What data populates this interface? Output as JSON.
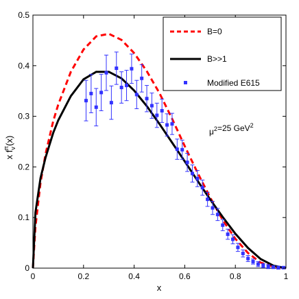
{
  "chart_data": {
    "type": "line",
    "title": "",
    "xlabel": "x",
    "ylabel": "x f_v^π(x)",
    "xlim": [
      0,
      1
    ],
    "ylim": [
      0,
      0.5
    ],
    "xticks": [
      "0",
      "0.2",
      "0.4",
      "0.6",
      "0.8",
      "1"
    ],
    "yticks": [
      "0",
      "0.1",
      "0.2",
      "0.3",
      "0.4",
      "0.5"
    ],
    "annotation": "μ²=25 GeV²",
    "legend_position": "top-right",
    "grid": false,
    "series": [
      {
        "name": "B=0",
        "style": "dashed",
        "color": "#ff0000",
        "x": [
          0,
          0.01,
          0.03,
          0.05,
          0.08,
          0.1,
          0.15,
          0.2,
          0.25,
          0.3,
          0.35,
          0.4,
          0.45,
          0.5,
          0.55,
          0.6,
          0.65,
          0.7,
          0.75,
          0.8,
          0.85,
          0.9,
          0.95,
          1.0
        ],
        "y": [
          0,
          0.082,
          0.169,
          0.226,
          0.29,
          0.323,
          0.388,
          0.432,
          0.458,
          0.463,
          0.451,
          0.425,
          0.389,
          0.346,
          0.295,
          0.241,
          0.189,
          0.14,
          0.095,
          0.058,
          0.03,
          0.011,
          0.003,
          0.0
        ]
      },
      {
        "name": "B>>1",
        "style": "solid",
        "color": "#000000",
        "x": [
          0,
          0.01,
          0.03,
          0.05,
          0.08,
          0.1,
          0.15,
          0.2,
          0.25,
          0.3,
          0.35,
          0.4,
          0.45,
          0.5,
          0.55,
          0.6,
          0.65,
          0.7,
          0.75,
          0.8,
          0.85,
          0.9,
          0.95,
          1.0
        ],
        "y": [
          0,
          0.11,
          0.178,
          0.219,
          0.267,
          0.292,
          0.34,
          0.373,
          0.388,
          0.388,
          0.375,
          0.351,
          0.32,
          0.285,
          0.248,
          0.211,
          0.173,
          0.136,
          0.101,
          0.068,
          0.04,
          0.018,
          0.005,
          0.0
        ]
      },
      {
        "name": "Modified E615",
        "style": "markers",
        "color": "#3333ff",
        "x": [
          0.21,
          0.23,
          0.25,
          0.27,
          0.29,
          0.31,
          0.33,
          0.35,
          0.37,
          0.39,
          0.41,
          0.43,
          0.45,
          0.47,
          0.49,
          0.51,
          0.53,
          0.55,
          0.57,
          0.59,
          0.61,
          0.63,
          0.65,
          0.67,
          0.69,
          0.71,
          0.73,
          0.75,
          0.77,
          0.79,
          0.81,
          0.83,
          0.85,
          0.87,
          0.89,
          0.91,
          0.93,
          0.95,
          0.97,
          0.99
        ],
        "y": [
          0.331,
          0.345,
          0.318,
          0.347,
          0.386,
          0.327,
          0.395,
          0.357,
          0.361,
          0.394,
          0.343,
          0.375,
          0.335,
          0.321,
          0.302,
          0.311,
          0.283,
          0.285,
          0.235,
          0.234,
          0.209,
          0.187,
          0.177,
          0.159,
          0.136,
          0.119,
          0.106,
          0.085,
          0.067,
          0.057,
          0.041,
          0.029,
          0.019,
          0.013,
          0.008,
          0.005,
          0.003,
          0.002,
          0.001,
          0.001
        ],
        "err": [
          0.04,
          0.038,
          0.037,
          0.036,
          0.035,
          0.033,
          0.032,
          0.031,
          0.03,
          0.029,
          0.028,
          0.027,
          0.026,
          0.025,
          0.024,
          0.023,
          0.022,
          0.021,
          0.02,
          0.019,
          0.018,
          0.017,
          0.016,
          0.015,
          0.014,
          0.013,
          0.012,
          0.011,
          0.01,
          0.009,
          0.008,
          0.007,
          0.006,
          0.005,
          0.005,
          0.004,
          0.004,
          0.003,
          0.003,
          0.002
        ]
      }
    ]
  }
}
